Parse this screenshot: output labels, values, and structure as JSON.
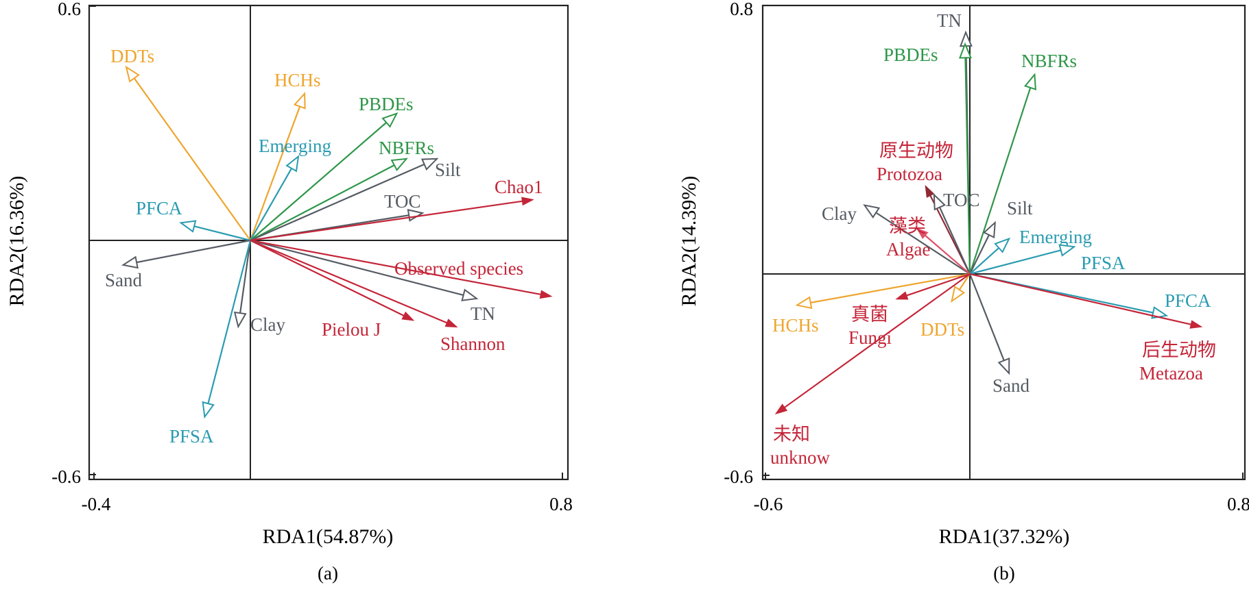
{
  "colors": {
    "orange": "#EEA52E",
    "green": "#2E9648",
    "teal": "#2A9BB0",
    "gray": "#555B63",
    "red": "#C42538",
    "pink": "#E0506A",
    "darkred": "#8E2A34"
  },
  "chart_data": [
    {
      "type": "scatter",
      "subtype": "rda-biplot",
      "caption": "(a)",
      "xlabel": "RDA1(54.87%)",
      "ylabel": "RDA2(16.36%)",
      "xlim": [
        -0.4,
        0.8
      ],
      "ylim": [
        -0.6,
        0.6
      ],
      "xticks": [
        "-0.4",
        "0.8"
      ],
      "yticks": [
        "0.6",
        "-0.6"
      ],
      "vectors": [
        {
          "name": "DDTs",
          "x": -0.318,
          "y": 0.444,
          "group": "orange",
          "head": "open"
        },
        {
          "name": "HCHs",
          "x": 0.139,
          "y": 0.376,
          "group": "orange",
          "head": "open"
        },
        {
          "name": "PBDEs",
          "x": 0.375,
          "y": 0.325,
          "group": "green",
          "head": "open"
        },
        {
          "name": "Emerging",
          "x": 0.123,
          "y": 0.215,
          "group": "teal",
          "head": "open"
        },
        {
          "name": "NBFRs",
          "x": 0.4,
          "y": 0.209,
          "group": "green",
          "head": "open"
        },
        {
          "name": "Silt",
          "x": 0.478,
          "y": 0.209,
          "group": "gray",
          "head": "open"
        },
        {
          "name": "TOC",
          "x": 0.441,
          "y": 0.07,
          "group": "gray",
          "head": "open"
        },
        {
          "name": "Chao1",
          "x": 0.722,
          "y": 0.104,
          "group": "red",
          "head": "filled"
        },
        {
          "name": "PFCA",
          "x": -0.178,
          "y": 0.045,
          "group": "teal",
          "head": "open"
        },
        {
          "name": "Sand",
          "x": -0.326,
          "y": -0.063,
          "group": "gray",
          "head": "open"
        },
        {
          "name": "Clay",
          "x": -0.031,
          "y": -0.221,
          "group": "gray",
          "head": "open"
        },
        {
          "name": "PFSA",
          "x": -0.117,
          "y": -0.452,
          "group": "teal",
          "head": "open"
        },
        {
          "name": "Pielou J",
          "x": 0.416,
          "y": -0.204,
          "group": "red",
          "head": "filled"
        },
        {
          "name": "Shannon",
          "x": 0.527,
          "y": -0.221,
          "group": "red",
          "head": "filled"
        },
        {
          "name": "TN",
          "x": 0.58,
          "y": -0.149,
          "group": "gray",
          "head": "open"
        },
        {
          "name": "Observed species",
          "x": 0.769,
          "y": -0.143,
          "group": "red",
          "head": "filled"
        }
      ]
    },
    {
      "type": "scatter",
      "subtype": "rda-biplot",
      "caption": "(b)",
      "xlabel": "RDA1(37.32%)",
      "ylabel": "RDA2(14.39%)",
      "xlim": [
        -0.6,
        0.8
      ],
      "ylim": [
        -0.6,
        0.8
      ],
      "xticks": [
        "-0.6",
        "0.8"
      ],
      "yticks": [
        "0.8",
        "-0.6"
      ],
      "vectors": [
        {
          "name": "TN",
          "x": -0.012,
          "y": 0.72,
          "group": "gray",
          "head": "open"
        },
        {
          "name": "PBDEs",
          "x": -0.014,
          "y": 0.685,
          "group": "green",
          "head": "open"
        },
        {
          "name": "NBFRs",
          "x": 0.19,
          "y": 0.594,
          "group": "green",
          "head": "open"
        },
        {
          "name": "Protozoa",
          "name_zh": "原生动物",
          "x": -0.129,
          "y": 0.26,
          "group": "darkred",
          "head": "filled"
        },
        {
          "name": "TOC",
          "x": -0.105,
          "y": 0.236,
          "group": "gray",
          "head": "open"
        },
        {
          "name": "Clay",
          "x": -0.309,
          "y": 0.205,
          "group": "gray",
          "head": "open"
        },
        {
          "name": "Algae",
          "name_zh": "藻类",
          "x": -0.153,
          "y": 0.134,
          "group": "pink",
          "head": "filled"
        },
        {
          "name": "Silt",
          "x": 0.074,
          "y": 0.153,
          "group": "gray",
          "head": "open"
        },
        {
          "name": "Emerging",
          "x": 0.115,
          "y": 0.105,
          "group": "teal",
          "head": "open"
        },
        {
          "name": "PFSA",
          "x": 0.306,
          "y": 0.081,
          "group": "teal",
          "head": "open"
        },
        {
          "name": "PFCA",
          "x": 0.577,
          "y": -0.124,
          "group": "teal",
          "head": "open"
        },
        {
          "name": "Metazoa",
          "name_zh": "后生动物",
          "x": 0.677,
          "y": -0.157,
          "group": "red",
          "head": "filled"
        },
        {
          "name": "HCHs",
          "x": -0.507,
          "y": -0.093,
          "group": "orange",
          "head": "open"
        },
        {
          "name": "Fungi",
          "name_zh": "真菌",
          "x": -0.213,
          "y": -0.074,
          "group": "red",
          "head": "filled"
        },
        {
          "name": "DDTs",
          "x": -0.053,
          "y": -0.081,
          "group": "orange",
          "head": "open"
        },
        {
          "name": "Sand",
          "x": 0.115,
          "y": -0.296,
          "group": "gray",
          "head": "open"
        },
        {
          "name": "unknow",
          "name_zh": "未知",
          "x": -0.567,
          "y": -0.415,
          "group": "red",
          "head": "filled"
        }
      ]
    }
  ]
}
